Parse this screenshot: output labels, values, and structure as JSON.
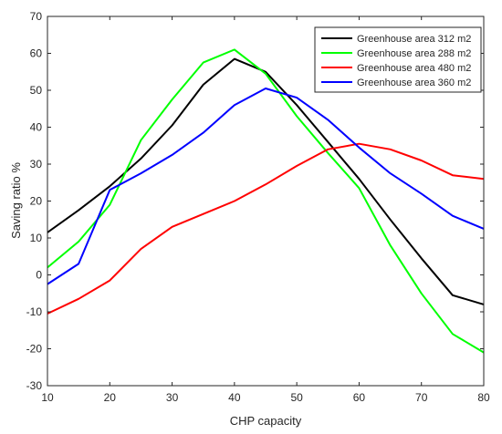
{
  "chart_data": {
    "type": "line",
    "title": "",
    "xlabel": "CHP capacity",
    "ylabel": "Saving ratio %",
    "xlim": [
      10,
      80
    ],
    "ylim": [
      -30,
      70
    ],
    "xticks": [
      10,
      20,
      30,
      40,
      50,
      60,
      70,
      80
    ],
    "yticks": [
      -30,
      -20,
      -10,
      0,
      10,
      20,
      30,
      40,
      50,
      60,
      70
    ],
    "grid": false,
    "legend_position": "top-right",
    "x": [
      10,
      15,
      20,
      25,
      30,
      35,
      40,
      45,
      50,
      55,
      60,
      65,
      70,
      75,
      80
    ],
    "series": [
      {
        "name": "Greenhouse area 312 m2",
        "color": "#000000",
        "values": [
          11.5,
          17.5,
          24,
          31.5,
          40.5,
          51.5,
          58.5,
          55,
          46,
          36,
          26,
          15,
          4.5,
          -5.5,
          -8
        ]
      },
      {
        "name": "Greenhouse area 288 m2",
        "color": "#00ff00",
        "values": [
          2,
          9,
          19,
          36.5,
          47.5,
          57.5,
          61,
          54.5,
          43,
          33,
          23.5,
          8,
          -5,
          -16,
          -21
        ]
      },
      {
        "name": "Greenhouse area 480 m2",
        "color": "#ff0000",
        "values": [
          -10.5,
          -6.5,
          -1.5,
          7,
          13,
          16.5,
          20,
          24.5,
          29.5,
          34,
          35.5,
          34,
          31,
          27,
          26
        ]
      },
      {
        "name": "Greenhouse area 360 m2",
        "color": "#0000ff",
        "values": [
          -2.5,
          3,
          23,
          27.5,
          32.5,
          38.5,
          46,
          50.5,
          48,
          42,
          34.5,
          27.5,
          22,
          16,
          12.5
        ]
      }
    ]
  }
}
